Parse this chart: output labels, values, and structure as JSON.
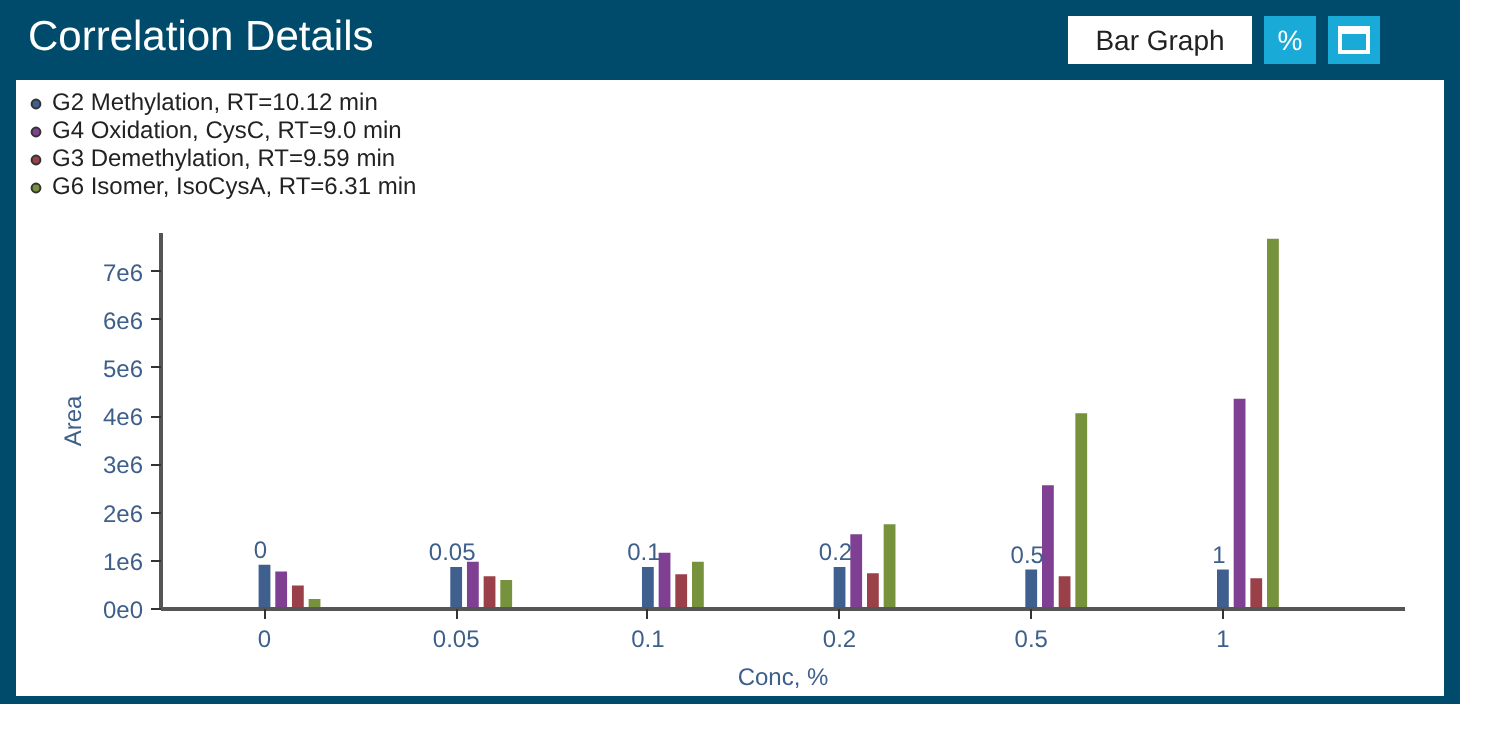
{
  "chart_data": {
    "type": "bar",
    "title": "Correlation Details",
    "xlabel": "Conc, %",
    "ylabel": "Area",
    "categories": [
      "0",
      "0.05",
      "0.1",
      "0.2",
      "0.5",
      "1"
    ],
    "series": [
      {
        "name": "G2 Methylation, RT=10.12 min",
        "color": "#3f5f8f",
        "values": [
          940000,
          890000,
          890000,
          890000,
          840000,
          840000
        ]
      },
      {
        "name": "G4 Oxidation, CysC, RT=9.0 min",
        "color": "#7f3f93",
        "values": [
          800000,
          1000000,
          1190000,
          1570000,
          2590000,
          4380000
        ]
      },
      {
        "name": "G3 Demethylation, RT=9.59 min",
        "color": "#9a4048",
        "values": [
          510000,
          700000,
          740000,
          760000,
          700000,
          660000
        ]
      },
      {
        "name": "G6 Isomer, IsoCysA, RT=6.31 min",
        "color": "#76923c",
        "values": [
          230000,
          620000,
          1000000,
          1780000,
          4080000,
          7700000
        ]
      }
    ],
    "ylim": [
      0,
      7800000
    ],
    "yticks": [
      {
        "value": 0,
        "label": "0e0"
      },
      {
        "value": 1000000,
        "label": "1e6"
      },
      {
        "value": 2000000,
        "label": "2e6"
      },
      {
        "value": 3000000,
        "label": "3e6"
      },
      {
        "value": 4000000,
        "label": "4e6"
      },
      {
        "value": 5000000,
        "label": "5e6"
      },
      {
        "value": 6000000,
        "label": "6e6"
      },
      {
        "value": 7000000,
        "label": "7e6"
      }
    ],
    "annotations": [
      "Bar Graph",
      "%",
      {
        "text": "0",
        "x": "0",
        "y": 940000
      },
      {
        "text": "0.05",
        "x": "0.05",
        "y": 890000
      },
      {
        "text": "0.1",
        "x": "0.1",
        "y": 890000
      },
      {
        "text": "0.2",
        "x": "0.2",
        "y": 890000
      },
      {
        "text": "0.5",
        "x": "0.5",
        "y": 840000
      },
      {
        "text": "1",
        "x": "1",
        "y": 840000
      }
    ],
    "legend": "top left",
    "grid": false
  }
}
